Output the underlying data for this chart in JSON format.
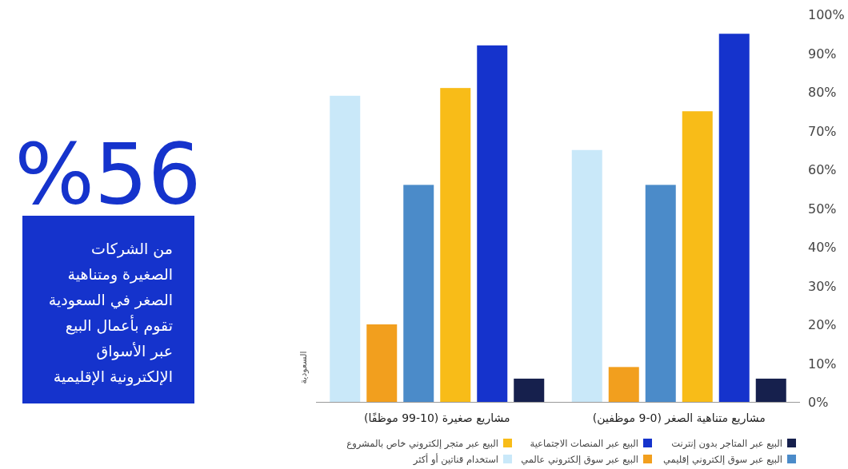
{
  "chart_data": {
    "type": "bar",
    "categories": [
      "مشاريع صغيرة (10-99 موظفًا)",
      "مشاريع متناهية الصغر (0-9 موظفين)"
    ],
    "series": [
      {
        "name": "استخدام قناتين أو أكثر",
        "color": "#c9e8f9",
        "values": [
          79,
          65
        ]
      },
      {
        "name": "البيع عبر سوق إلكتروني عالمي",
        "color": "#f29f1e",
        "values": [
          20,
          9
        ]
      },
      {
        "name": "البيع عبر سوق إلكتروني إقليمي",
        "color": "#4b8bc9",
        "values": [
          56,
          56
        ]
      },
      {
        "name": "البيع عبر متجر إلكتروني خاص بالمشروع",
        "color": "#f8bc18",
        "values": [
          81,
          75
        ]
      },
      {
        "name": "البيع عبر المنصات الاجتماعية",
        "color": "#1533cc",
        "values": [
          92,
          95
        ]
      },
      {
        "name": "البيع عبر المتاجر بدون إنترنت",
        "color": "#16204d",
        "values": [
          6,
          6
        ]
      }
    ],
    "ylim": [
      0,
      100
    ],
    "yticks": [
      {
        "value": 0,
        "label": "0%"
      },
      {
        "value": 10,
        "label": "10%"
      },
      {
        "value": 20,
        "label": "20%"
      },
      {
        "value": 30,
        "label": "30%"
      },
      {
        "value": 40,
        "label": "40%"
      },
      {
        "value": 50,
        "label": "50%"
      },
      {
        "value": 60,
        "label": "60%"
      },
      {
        "value": 70,
        "label": "70%"
      },
      {
        "value": 80,
        "label": "80%"
      },
      {
        "value": 90,
        "label": "90%"
      },
      {
        "value": 100,
        "label": "100%"
      }
    ],
    "grid": false,
    "legend": "bottom",
    "annotations": [
      "%56",
      "من الشركات\nالصغيرة ومتناهية\nالصغر في السعودية\nتقوم بأعمال البيع\nعبر الأسواق\nالإلكترونية الإقليمية",
      "السعودية"
    ]
  }
}
